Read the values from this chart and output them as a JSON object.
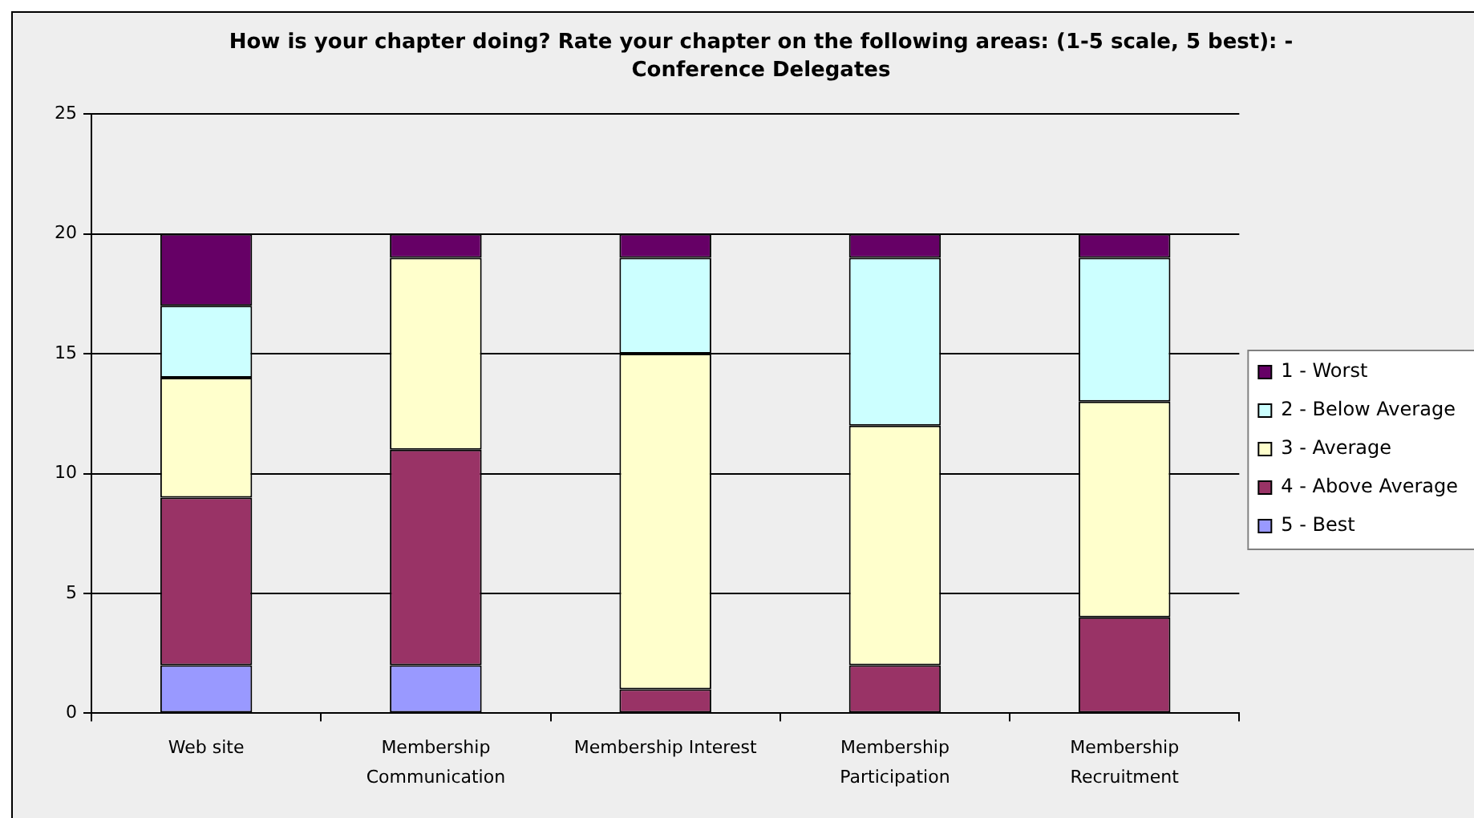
{
  "chart_data": {
    "type": "bar",
    "title": "How is your chapter doing? Rate your chapter on the following areas: (1-5 scale, 5 best): - Conference Delegates",
    "categories": [
      "Web site",
      "Membership Communication",
      "Membership Interest",
      "Membership Participation",
      "Membership Recruitment"
    ],
    "stacked": true,
    "series": [
      {
        "name": "5 - Best",
        "color": "#9999ff",
        "values": [
          2,
          2,
          0,
          0,
          0
        ]
      },
      {
        "name": "4 - Above Average",
        "color": "#993366",
        "values": [
          7,
          9,
          1,
          2,
          4
        ]
      },
      {
        "name": "3 - Average",
        "color": "#ffffcc",
        "values": [
          5,
          8,
          14,
          10,
          9
        ]
      },
      {
        "name": "2 - Below Average",
        "color": "#ccffff",
        "values": [
          3,
          0,
          4,
          7,
          6
        ]
      },
      {
        "name": "1 - Worst",
        "color": "#660066",
        "values": [
          3,
          1,
          1,
          1,
          1
        ]
      }
    ],
    "ylim": [
      0,
      25
    ],
    "yticks": [
      0,
      5,
      10,
      15,
      20,
      25
    ],
    "grid": "y",
    "legend": "right"
  }
}
